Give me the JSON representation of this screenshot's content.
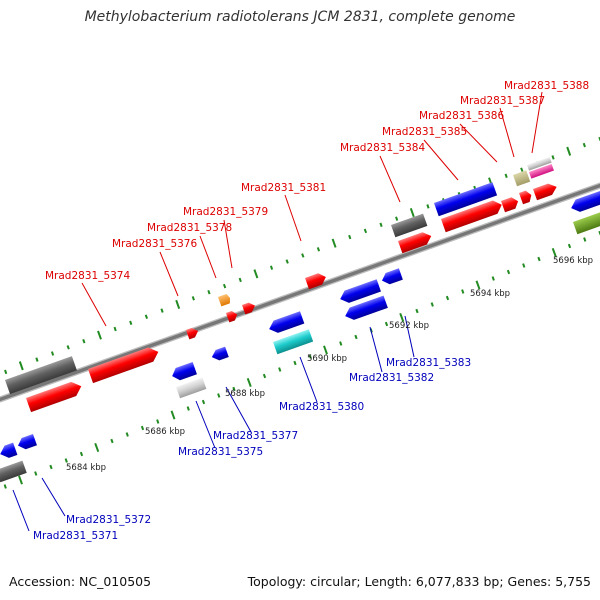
{
  "title": "Methylobacterium radiotolerans JCM 2831, complete genome",
  "footer": {
    "accession": "Accession: NC_010505",
    "summary": "Topology: circular; Length: 6,077,833 bp; Genes: 5,755"
  },
  "colors": {
    "top_label": "#dd0000",
    "bottom_label": "#0000bb",
    "backbone": "#888888",
    "tick": "#228b22"
  },
  "scale_labels": [
    "5684 kbp",
    "5686 kbp",
    "5688 kbp",
    "5690 kbp",
    "5692 kbp",
    "5694 kbp",
    "5696 kbp"
  ],
  "genes_top": [
    "Mrad2831_5374",
    "Mrad2831_5376",
    "Mrad2831_5378",
    "Mrad2831_5379",
    "Mrad2831_5381",
    "Mrad2831_5384",
    "Mrad2831_5385",
    "Mrad2831_5386",
    "Mrad2831_5387",
    "Mrad2831_5388"
  ],
  "genes_bottom": [
    "Mrad2831_5371",
    "Mrad2831_5372",
    "Mrad2831_5375",
    "Mrad2831_5377",
    "Mrad2831_5380",
    "Mrad2831_5382",
    "Mrad2831_5383"
  ]
}
